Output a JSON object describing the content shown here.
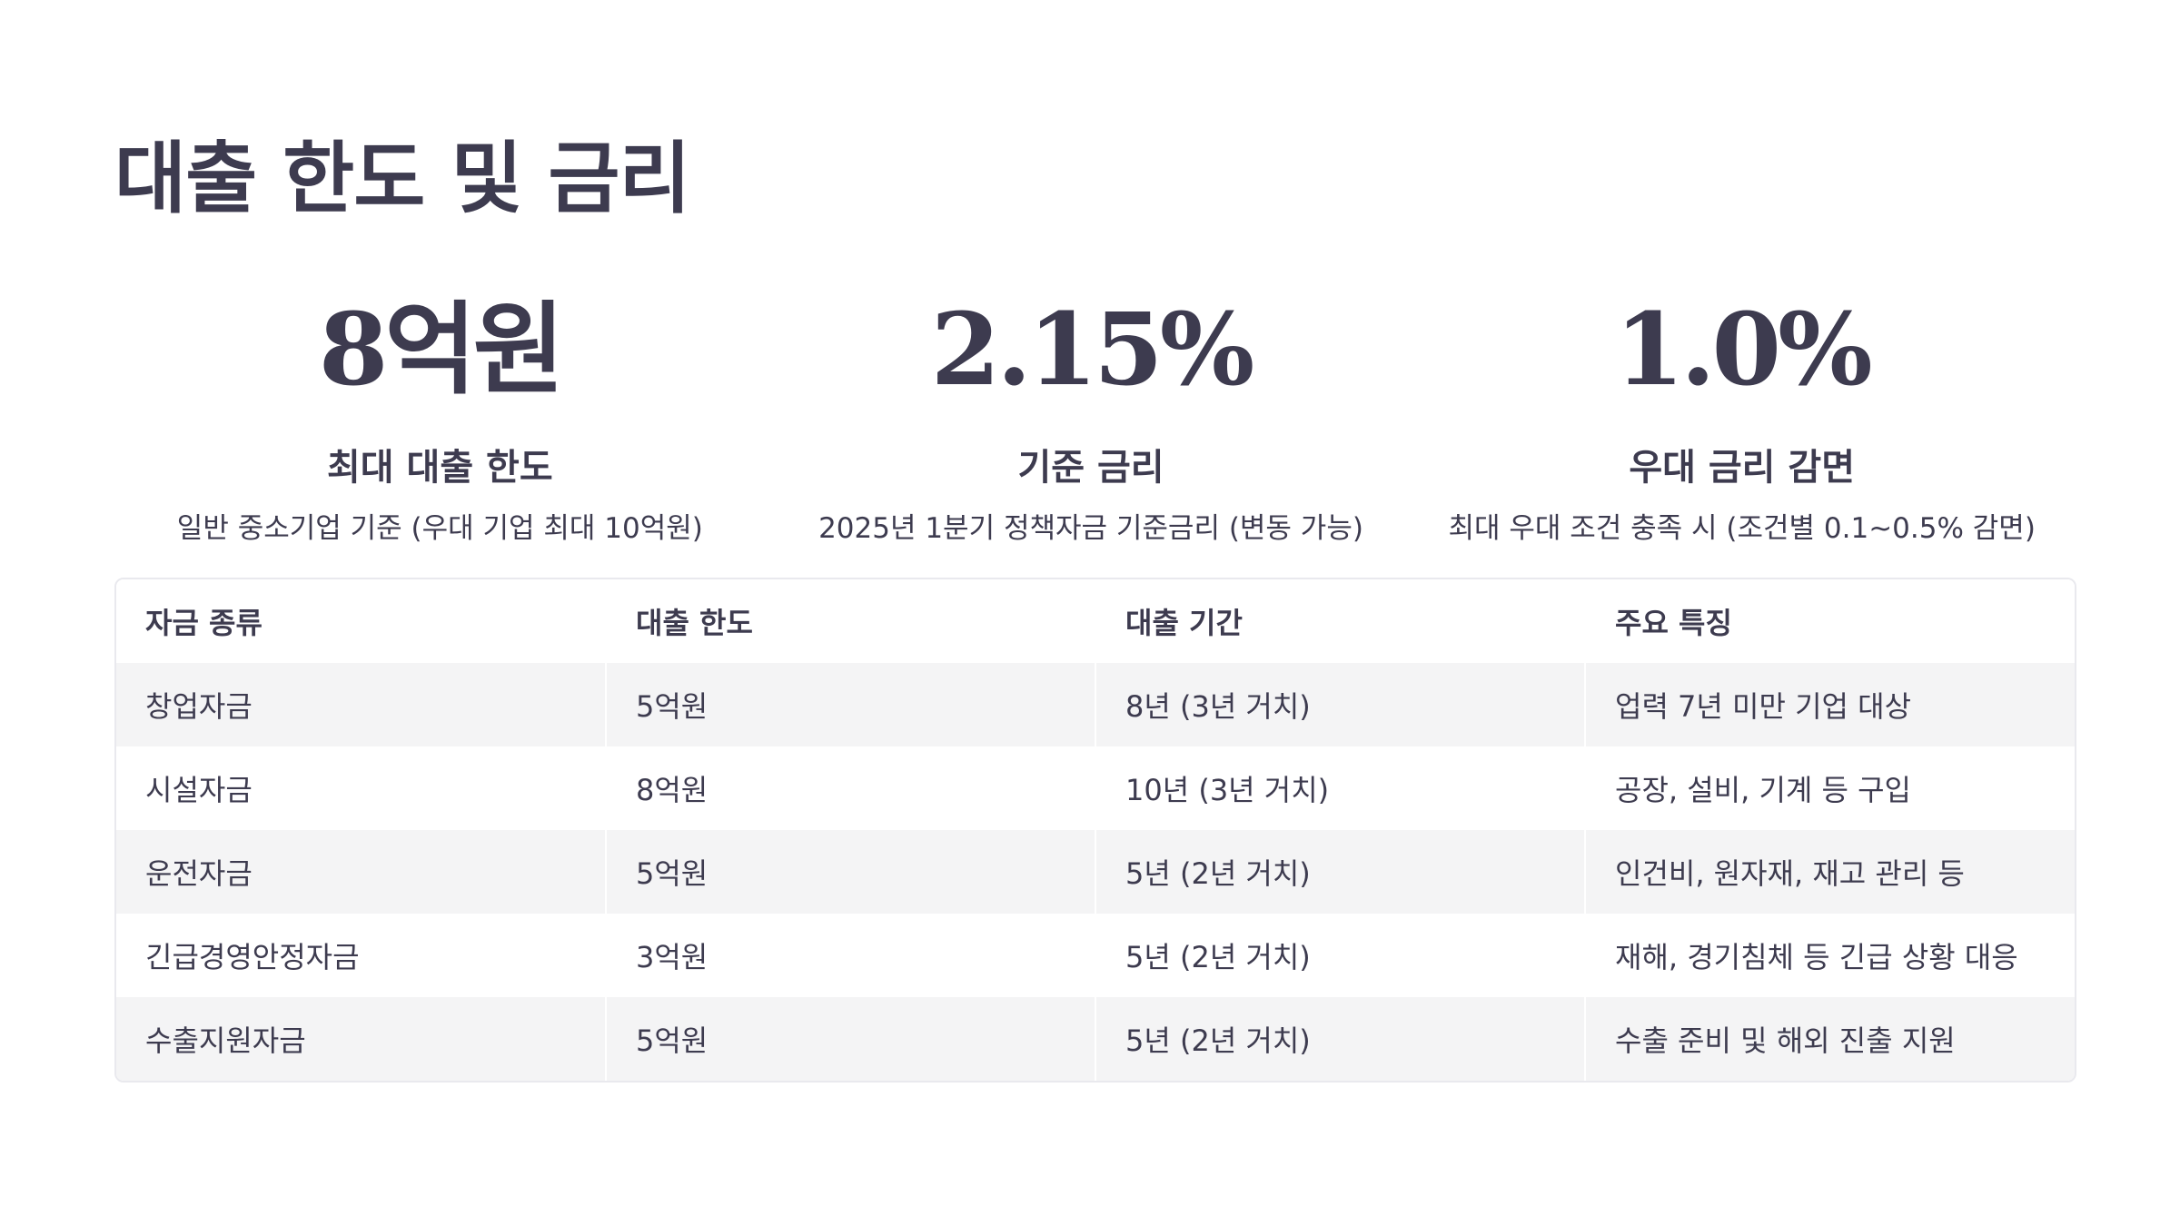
{
  "page": {
    "title": "대출 한도 및 금리"
  },
  "stats": [
    {
      "value": "8억원",
      "label": "최대 대출 한도",
      "description": "일반 중소기업 기준 (우대 기업 최대 10억원)"
    },
    {
      "value": "2.15%",
      "label": "기준 금리",
      "description": "2025년 1분기 정책자금 기준금리 (변동 가능)"
    },
    {
      "value": "1.0%",
      "label": "우대 금리 감면",
      "description": "최대 우대 조건 충족 시 (조건별 0.1~0.5% 감면)"
    }
  ],
  "table": {
    "headers": [
      "자금 종류",
      "대출 한도",
      "대출 기간",
      "주요 특징"
    ],
    "rows": [
      [
        "창업자금",
        "5억원",
        "8년 (3년 거치)",
        "업력 7년 미만 기업 대상"
      ],
      [
        "시설자금",
        "8억원",
        "10년 (3년 거치)",
        "공장, 설비, 기계 등 구입"
      ],
      [
        "운전자금",
        "5억원",
        "5년 (2년 거치)",
        "인건비, 원자재, 재고 관리 등"
      ],
      [
        "긴급경영안정자금",
        "3억원",
        "5년 (2년 거치)",
        "재해, 경기침체 등 긴급 상황 대응"
      ],
      [
        "수출지원자금",
        "5억원",
        "5년 (2년 거치)",
        "수출 준비 및 해외 진출 지원"
      ]
    ]
  },
  "colors": {
    "text": "#3d3b4f",
    "row_stripe": "#f4f4f5",
    "table_border": "#e9e9ee"
  }
}
